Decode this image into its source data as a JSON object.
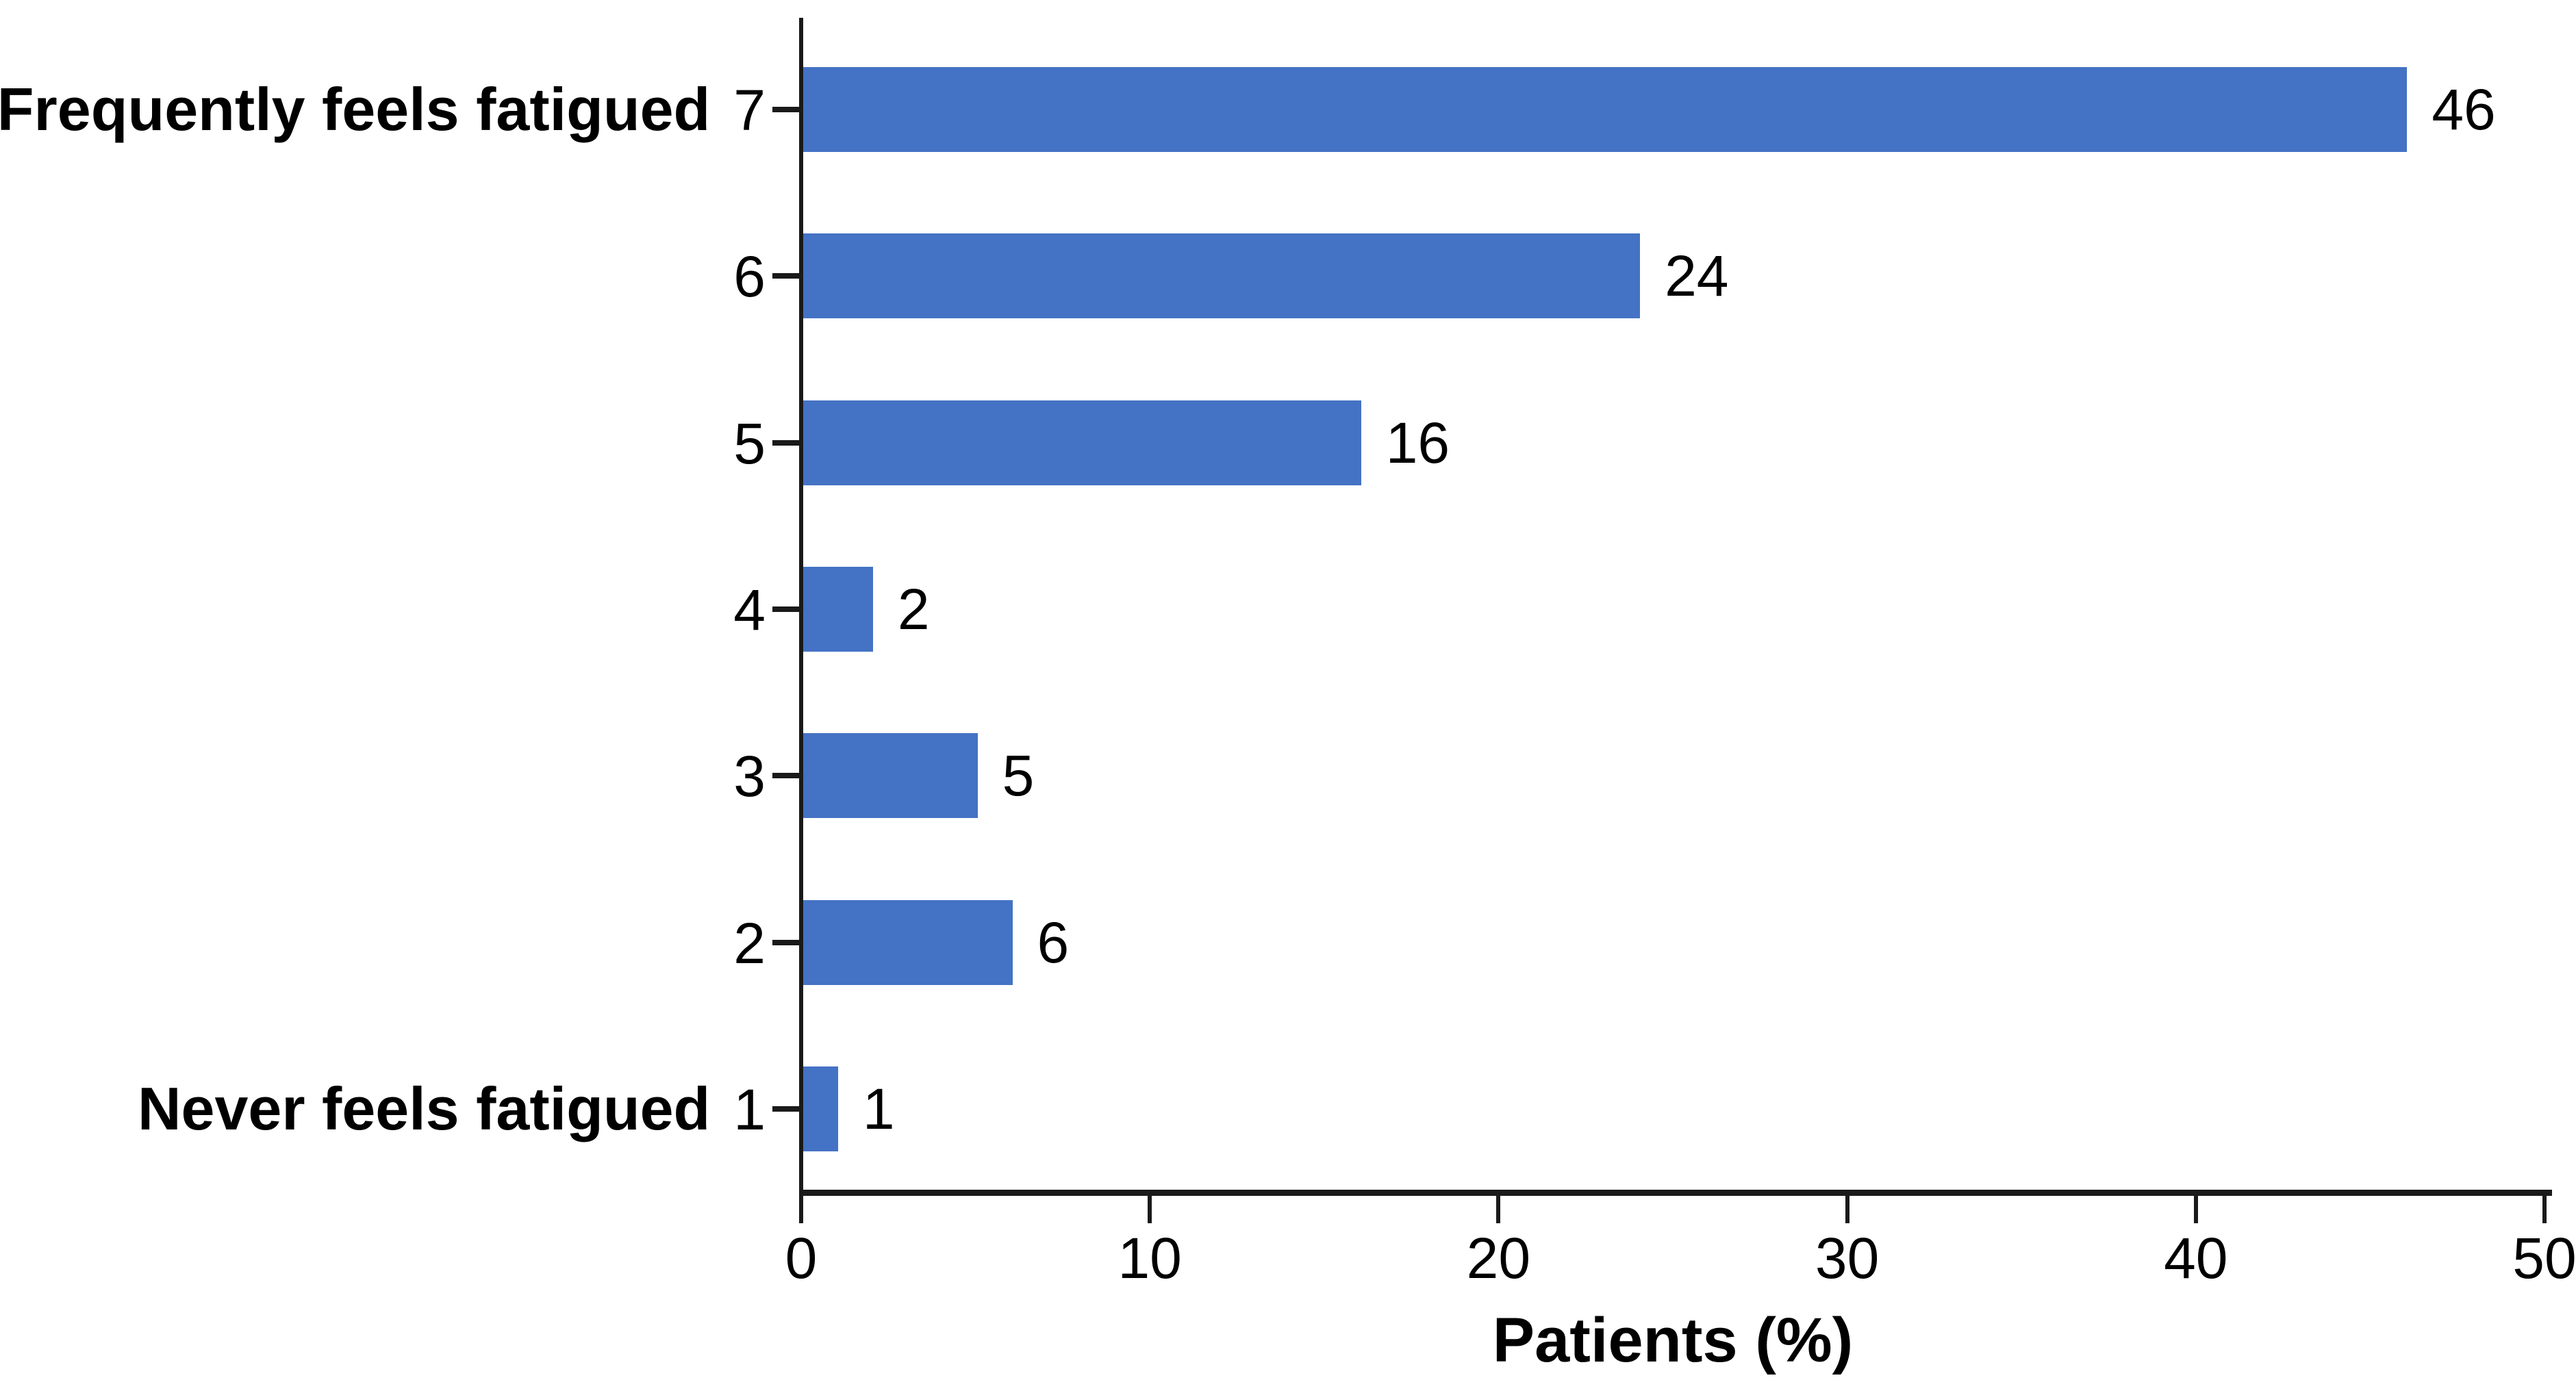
{
  "chart_data": {
    "type": "bar",
    "orientation": "horizontal",
    "title": "",
    "xlabel": "Patients (%)",
    "ylabel": "",
    "xlim": [
      0,
      50
    ],
    "xticks": [
      0,
      10,
      20,
      30,
      40,
      50
    ],
    "grid": false,
    "legend_position": "none",
    "value_labels_position": "right of bars",
    "bar_color": "#4472C4",
    "axis_color": "#1a1a1a",
    "text_color": "#000000",
    "background_color": "#ffffff",
    "categories": [
      "7",
      "6",
      "5",
      "4",
      "3",
      "2",
      "1"
    ],
    "values": [
      46,
      24,
      16,
      2,
      5,
      6,
      1
    ],
    "rows": [
      {
        "tick": "7",
        "annotation": "Frequently feels fatigued",
        "value": 46
      },
      {
        "tick": "6",
        "annotation": "",
        "value": 24
      },
      {
        "tick": "5",
        "annotation": "",
        "value": 16
      },
      {
        "tick": "4",
        "annotation": "",
        "value": 2
      },
      {
        "tick": "3",
        "annotation": "",
        "value": 5
      },
      {
        "tick": "2",
        "annotation": "",
        "value": 6
      },
      {
        "tick": "1",
        "annotation": "Never feels fatigued",
        "value": 1
      }
    ]
  }
}
